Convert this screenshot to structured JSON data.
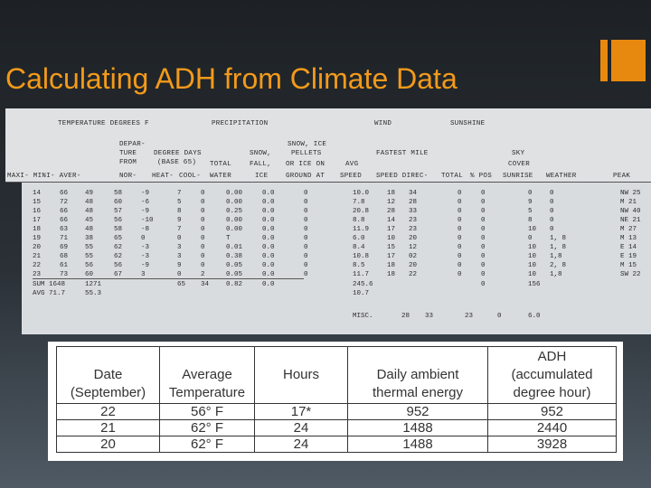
{
  "slide": {
    "title": "Calculating ADH from Climate Data"
  },
  "scan": {
    "top_labels": [
      "TEMPERATURE DEGREES F",
      "PRECIPITATION",
      "WIND",
      "SUNSHINE",
      "DEPAR-",
      "TURE",
      "FROM",
      "NOR-",
      "DEGREE DAYS",
      "(BASE 65)",
      "HEAT-",
      "COOL-",
      "TOTAL",
      "WATER",
      "SNOW,",
      "FALL,",
      "ICE",
      "SNOW, ICE",
      "PELLETS",
      "OR ICE ON",
      "GROUND AT",
      "AVG",
      "SPEED",
      "FASTEST MILE",
      "SPEED DIREC-",
      "TOTAL",
      "% POS",
      "SKY",
      "COVER",
      "SUNRISE",
      "WEATHER",
      "PEAK",
      "MAXI- MINI- AVER-"
    ],
    "rows": [
      [
        "14",
        "66",
        "49",
        "58",
        "-9",
        "7",
        "0",
        "0.00",
        "0.0",
        "0",
        "10.0",
        "18",
        "34",
        "0",
        "0",
        "0",
        "0",
        "NW 25"
      ],
      [
        "15",
        "72",
        "48",
        "60",
        "-6",
        "5",
        "0",
        "0.00",
        "0.0",
        "0",
        "7.8",
        "12",
        "28",
        "0",
        "0",
        "9",
        "0",
        "M 21"
      ],
      [
        "16",
        "66",
        "48",
        "57",
        "-9",
        "8",
        "0",
        "0.25",
        "0.0",
        "0",
        "20.8",
        "28",
        "33",
        "0",
        "0",
        "5",
        "0",
        "NW 40"
      ],
      [
        "17",
        "66",
        "45",
        "56",
        "-10",
        "9",
        "0",
        "0.00",
        "0.0",
        "0",
        "8.8",
        "14",
        "23",
        "0",
        "0",
        "8",
        "0",
        "NE 21"
      ],
      [
        "18",
        "63",
        "48",
        "58",
        "-8",
        "7",
        "0",
        "0.00",
        "0.0",
        "0",
        "11.9",
        "17",
        "23",
        "0",
        "0",
        "10",
        "0",
        "M 27"
      ],
      [
        "19",
        "71",
        "38",
        "65",
        "0",
        "0",
        "0",
        "T",
        "0.0",
        "0",
        "6.0",
        "10",
        "20",
        "0",
        "0",
        "0",
        "1, 8",
        "M 13"
      ],
      [
        "20",
        "69",
        "55",
        "62",
        "-3",
        "3",
        "0",
        "0.01",
        "0.0",
        "0",
        "8.4",
        "15",
        "12",
        "0",
        "0",
        "10",
        "1, 8",
        "E 14"
      ],
      [
        "21",
        "68",
        "55",
        "62",
        "-3",
        "3",
        "0",
        "0.38",
        "0.0",
        "0",
        "10.8",
        "17",
        "02",
        "0",
        "0",
        "10",
        "1,8",
        "E 19"
      ],
      [
        "22",
        "61",
        "56",
        "56",
        "-9",
        "9",
        "0",
        "0.05",
        "0.0",
        "0",
        "8.5",
        "18",
        "20",
        "0",
        "0",
        "10",
        "2, 8",
        "M 15"
      ],
      [
        "23",
        "73",
        "60",
        "67",
        "3",
        "0",
        "2",
        "0.05",
        "0.0",
        "0",
        "11.7",
        "18",
        "22",
        "0",
        "0",
        "10",
        "1,8",
        "SW 22"
      ]
    ],
    "sum_label": "SUM 1648",
    "sum_min": "1271",
    "sum_heat": "65",
    "sum_cool": "34",
    "sum_water": "0.82",
    "sum_snow": "0.0",
    "sum_wind": "245.6",
    "sum_pos": "0",
    "sum_sky": "156",
    "avg_label": "AVG 71.7",
    "avg_min": "55.3",
    "avg_wind": "10.7",
    "misc": {
      "label": "MISC.",
      "v1": "28",
      "v2": "33",
      "v3": "23",
      "v4": "0",
      "v5": "6.0"
    }
  },
  "adh_table": {
    "headers": [
      [
        "Date",
        "(September)"
      ],
      [
        "Average",
        "Temperature"
      ],
      [
        "Hours"
      ],
      [
        "Daily ambient",
        "thermal energy"
      ],
      [
        "ADH",
        "(accumulated",
        "degree hour)"
      ]
    ],
    "rows": [
      [
        "22",
        "56° F",
        "17*",
        "952",
        "952"
      ],
      [
        "21",
        "62° F",
        "24",
        "1488",
        "2440"
      ],
      [
        "20",
        "62° F",
        "24",
        "1488",
        "3928"
      ]
    ]
  }
}
